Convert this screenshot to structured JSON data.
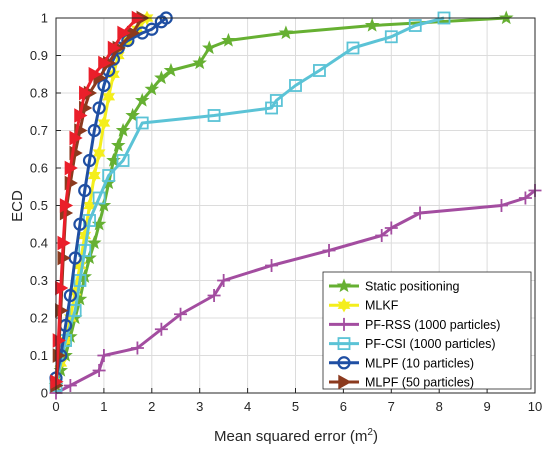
{
  "chart_data": {
    "type": "line",
    "xlabel": "Mean squared error (m",
    "xlabel_sup": "2",
    "xlabel_close": ")",
    "ylabel": "ECD",
    "xlim": [
      0,
      10
    ],
    "ylim": [
      0,
      1
    ],
    "xticks": [
      "0",
      "1",
      "2",
      "3",
      "4",
      "5",
      "6",
      "7",
      "8",
      "9",
      "10"
    ],
    "yticks": [
      "0",
      "0.1",
      "0.2",
      "0.3",
      "0.4",
      "0.5",
      "0.6",
      "0.7",
      "0.8",
      "0.9",
      "1"
    ],
    "grid": true,
    "legend_position": "bottom-right",
    "series": [
      {
        "name": "Static positioning",
        "color": "#66b032",
        "marker": "star",
        "x": [
          0.0,
          0.1,
          0.2,
          0.3,
          0.4,
          0.5,
          0.6,
          0.7,
          0.8,
          0.9,
          1.0,
          1.1,
          1.2,
          1.3,
          1.4,
          1.6,
          1.8,
          2.0,
          2.2,
          2.4,
          3.0,
          3.2,
          3.6,
          4.8,
          6.6,
          9.4
        ],
        "y": [
          0.02,
          0.06,
          0.1,
          0.15,
          0.2,
          0.25,
          0.31,
          0.36,
          0.4,
          0.45,
          0.5,
          0.56,
          0.62,
          0.66,
          0.7,
          0.74,
          0.78,
          0.81,
          0.84,
          0.86,
          0.88,
          0.92,
          0.94,
          0.96,
          0.98,
          1.0
        ]
      },
      {
        "name": "MLKF",
        "color": "#f4ee1c",
        "marker": "hexagram",
        "x": [
          0.0,
          0.1,
          0.2,
          0.3,
          0.4,
          0.5,
          0.6,
          0.7,
          0.8,
          0.9,
          1.0,
          1.1,
          1.2,
          1.3,
          1.5,
          1.7,
          1.9
        ],
        "y": [
          0.03,
          0.08,
          0.14,
          0.2,
          0.27,
          0.34,
          0.42,
          0.5,
          0.58,
          0.64,
          0.72,
          0.79,
          0.85,
          0.9,
          0.94,
          0.97,
          1.0
        ]
      },
      {
        "name": "PF-RSS (1000 particles)",
        "color": "#a34da0",
        "marker": "plus",
        "x": [
          0.0,
          0.3,
          0.9,
          1.0,
          1.7,
          2.2,
          2.6,
          3.3,
          3.5,
          4.5,
          5.7,
          6.8,
          7.0,
          7.6,
          9.3,
          9.8,
          10.0
        ],
        "y": [
          0.0,
          0.02,
          0.06,
          0.1,
          0.12,
          0.17,
          0.21,
          0.26,
          0.3,
          0.34,
          0.38,
          0.42,
          0.44,
          0.48,
          0.5,
          0.52,
          0.54
        ]
      },
      {
        "name": "PF-CSI (1000 particles)",
        "color": "#5bc3d6",
        "marker": "square",
        "x": [
          0.0,
          0.2,
          0.4,
          0.5,
          0.6,
          0.7,
          0.9,
          1.1,
          1.4,
          1.8,
          3.3,
          4.5,
          4.6,
          5.0,
          5.5,
          6.2,
          7.0,
          7.5,
          8.1
        ],
        "y": [
          0.02,
          0.14,
          0.22,
          0.3,
          0.38,
          0.46,
          0.52,
          0.58,
          0.62,
          0.72,
          0.74,
          0.76,
          0.78,
          0.82,
          0.86,
          0.92,
          0.95,
          0.98,
          1.0
        ]
      },
      {
        "name": "MLPF (10 particles)",
        "color": "#1f4fa3",
        "marker": "circle",
        "x": [
          0.0,
          0.1,
          0.2,
          0.3,
          0.4,
          0.5,
          0.6,
          0.7,
          0.8,
          0.9,
          1.0,
          1.1,
          1.2,
          1.3,
          1.5,
          1.8,
          2.0,
          2.2,
          2.3
        ],
        "y": [
          0.04,
          0.1,
          0.18,
          0.26,
          0.36,
          0.45,
          0.54,
          0.62,
          0.7,
          0.76,
          0.82,
          0.86,
          0.89,
          0.92,
          0.94,
          0.96,
          0.97,
          0.99,
          1.0
        ]
      },
      {
        "name": "MLPF (50 particles)",
        "color": "#8b3a1e",
        "marker": "triangle-right",
        "x": [
          0.0,
          0.05,
          0.1,
          0.15,
          0.2,
          0.3,
          0.4,
          0.5,
          0.6,
          0.7,
          0.9,
          1.1,
          1.3,
          1.6,
          1.8
        ],
        "y": [
          0.02,
          0.1,
          0.22,
          0.36,
          0.48,
          0.56,
          0.64,
          0.7,
          0.76,
          0.8,
          0.84,
          0.88,
          0.92,
          0.96,
          1.0
        ]
      },
      {
        "name": "",
        "color": "#ea1f2a",
        "marker": "triangle-right",
        "x": [
          0.0,
          0.05,
          0.1,
          0.15,
          0.2,
          0.3,
          0.4,
          0.5,
          0.6,
          0.8,
          1.0,
          1.2,
          1.4,
          1.7
        ],
        "y": [
          0.03,
          0.14,
          0.28,
          0.4,
          0.5,
          0.6,
          0.68,
          0.74,
          0.8,
          0.85,
          0.88,
          0.92,
          0.96,
          1.0
        ]
      }
    ]
  }
}
